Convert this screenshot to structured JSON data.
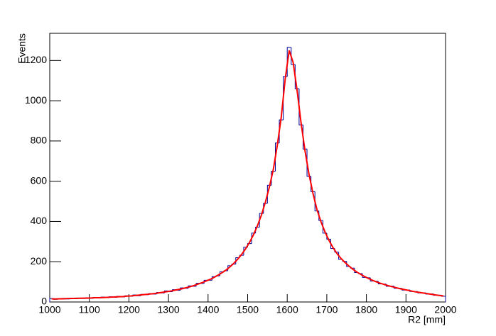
{
  "chart_data": {
    "type": "histogram",
    "x_label": "R2 [mm]",
    "y_label": "Events",
    "bins": [
      1000,
      1010,
      1020,
      1030,
      1040,
      1050,
      1060,
      1070,
      1080,
      1090,
      1100,
      1110,
      1120,
      1130,
      1140,
      1150,
      1160,
      1170,
      1180,
      1190,
      1200,
      1210,
      1220,
      1230,
      1240,
      1250,
      1260,
      1270,
      1280,
      1290,
      1300,
      1310,
      1320,
      1330,
      1340,
      1350,
      1360,
      1370,
      1380,
      1390,
      1400,
      1410,
      1420,
      1430,
      1440,
      1450,
      1460,
      1470,
      1480,
      1490,
      1500,
      1510,
      1520,
      1530,
      1540,
      1550,
      1560,
      1570,
      1580,
      1590,
      1600,
      1610,
      1620,
      1630,
      1640,
      1650,
      1660,
      1670,
      1680,
      1690,
      1700,
      1710,
      1720,
      1730,
      1740,
      1750,
      1760,
      1770,
      1780,
      1790,
      1800,
      1810,
      1820,
      1830,
      1840,
      1850,
      1860,
      1870,
      1880,
      1890,
      1900,
      1910,
      1920,
      1930,
      1940,
      1950,
      1960,
      1970,
      1980,
      1990,
      2000
    ],
    "values": [
      17,
      13,
      16,
      18,
      15,
      19,
      16,
      20,
      17,
      21,
      18,
      23,
      20,
      24,
      21,
      26,
      23,
      28,
      25,
      31,
      28,
      35,
      31,
      38,
      36,
      42,
      39,
      47,
      45,
      55,
      51,
      61,
      58,
      70,
      68,
      80,
      78,
      93,
      92,
      108,
      108,
      126,
      130,
      150,
      155,
      180,
      188,
      220,
      232,
      272,
      290,
      342,
      372,
      440,
      490,
      580,
      650,
      790,
      905,
      1120,
      1265,
      1180,
      1060,
      880,
      760,
      625,
      548,
      452,
      405,
      342,
      312,
      266,
      248,
      212,
      202,
      176,
      168,
      146,
      141,
      122,
      120,
      104,
      103,
      90,
      89,
      78,
      79,
      68,
      68,
      59,
      60,
      52,
      52,
      45,
      46,
      39,
      40,
      33,
      34,
      28
    ],
    "color": "#000099",
    "fit": {
      "color": "#ff0000",
      "x": [
        1005,
        1015,
        1025,
        1035,
        1045,
        1055,
        1065,
        1075,
        1085,
        1095,
        1105,
        1115,
        1125,
        1135,
        1145,
        1155,
        1165,
        1175,
        1185,
        1195,
        1205,
        1215,
        1225,
        1235,
        1245,
        1255,
        1265,
        1275,
        1285,
        1295,
        1305,
        1315,
        1325,
        1335,
        1345,
        1355,
        1365,
        1375,
        1385,
        1395,
        1405,
        1415,
        1425,
        1435,
        1445,
        1455,
        1465,
        1475,
        1485,
        1495,
        1505,
        1515,
        1525,
        1535,
        1545,
        1555,
        1565,
        1575,
        1585,
        1595,
        1605,
        1615,
        1625,
        1635,
        1645,
        1655,
        1665,
        1675,
        1685,
        1695,
        1705,
        1715,
        1725,
        1735,
        1745,
        1755,
        1765,
        1775,
        1785,
        1795,
        1805,
        1815,
        1825,
        1835,
        1845,
        1855,
        1865,
        1875,
        1885,
        1895,
        1905,
        1915,
        1925,
        1935,
        1945,
        1955,
        1965,
        1975,
        1985,
        1995
      ],
      "values": [
        15,
        15,
        16,
        16,
        17,
        17,
        18,
        18,
        19,
        19,
        20,
        21,
        21,
        22,
        23,
        24,
        25,
        26,
        27,
        29,
        30,
        32,
        34,
        36,
        38,
        40,
        42,
        45,
        48,
        51,
        54,
        58,
        62,
        66,
        71,
        76,
        82,
        89,
        96,
        104,
        112,
        122,
        133,
        145,
        158,
        174,
        192,
        213,
        237,
        265,
        297,
        335,
        380,
        433,
        497,
        572,
        660,
        780,
        920,
        1110,
        1250,
        1190,
        1050,
        890,
        750,
        635,
        540,
        460,
        400,
        350,
        308,
        272,
        243,
        218,
        198,
        180,
        164,
        150,
        138,
        127,
        117,
        108,
        100,
        93,
        87,
        81,
        76,
        71,
        66,
        62,
        58,
        54,
        50,
        47,
        44,
        41,
        38,
        35,
        32,
        30
      ]
    },
    "xlim": [
      1000,
      2000
    ],
    "xticks": [
      1000,
      1100,
      1200,
      1300,
      1400,
      1500,
      1600,
      1700,
      1800,
      1900,
      2000
    ],
    "ylim": [
      0,
      1335
    ],
    "yticks": [
      0,
      200,
      400,
      600,
      800,
      1000,
      1200
    ]
  }
}
